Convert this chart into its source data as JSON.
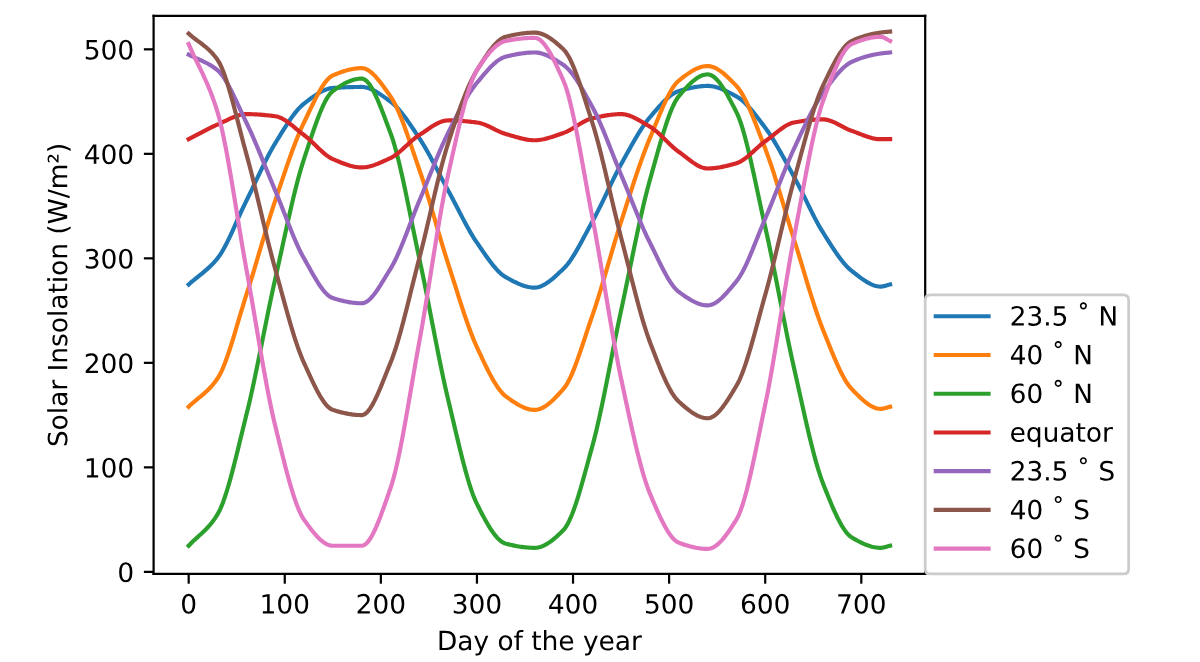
{
  "chart_data": {
    "type": "line",
    "xlabel": "Day of the year",
    "ylabel": "Solar Insolation (W/m²)",
    "x": [
      0,
      30,
      60,
      90,
      120,
      150,
      180,
      210,
      240,
      270,
      300,
      330,
      360,
      390,
      420,
      450,
      480,
      510,
      540,
      570,
      600,
      630,
      660,
      690,
      720,
      730
    ],
    "series": [
      {
        "name": "23.5 ˚ N",
        "color": "#1f77b4",
        "values": [
          275,
          300,
          355,
          410,
          448,
          463,
          464,
          450,
          415,
          365,
          315,
          282,
          272,
          290,
          335,
          390,
          435,
          460,
          465,
          455,
          425,
          378,
          325,
          288,
          273,
          275
        ]
      },
      {
        "name": "40 ˚ N",
        "color": "#ff7f0e",
        "values": [
          158,
          185,
          265,
          355,
          430,
          475,
          482,
          455,
          385,
          295,
          215,
          168,
          155,
          175,
          245,
          335,
          415,
          470,
          484,
          465,
          405,
          318,
          232,
          175,
          156,
          158
        ]
      },
      {
        "name": "60 ˚ N",
        "color": "#2ca02c",
        "values": [
          25,
          55,
          150,
          280,
          395,
          460,
          472,
          420,
          300,
          165,
          65,
          27,
          23,
          40,
          120,
          250,
          375,
          455,
          476,
          440,
          330,
          195,
          85,
          33,
          23,
          25
        ]
      },
      {
        "name": "equator",
        "color": "#d62728",
        "values": [
          414,
          428,
          438,
          436,
          418,
          395,
          387,
          396,
          418,
          432,
          430,
          419,
          413,
          420,
          434,
          438,
          426,
          402,
          386,
          391,
          412,
          430,
          433,
          422,
          414,
          414
        ]
      },
      {
        "name": "23.5 ˚ S",
        "color": "#9467bd",
        "values": [
          495,
          480,
          430,
          365,
          300,
          262,
          257,
          290,
          355,
          420,
          468,
          493,
          497,
          485,
          445,
          380,
          315,
          268,
          255,
          278,
          338,
          405,
          458,
          488,
          496,
          497
        ]
      },
      {
        "name": "40 ˚ S",
        "color": "#8c564b",
        "values": [
          515,
          490,
          400,
          290,
          200,
          155,
          150,
          200,
          300,
          410,
          480,
          512,
          516,
          500,
          430,
          320,
          220,
          163,
          147,
          178,
          265,
          375,
          465,
          508,
          516,
          517
        ]
      },
      {
        "name": "60 ˚ S",
        "color": "#e377c2",
        "values": [
          505,
          440,
          290,
          140,
          50,
          25,
          25,
          80,
          220,
          380,
          480,
          508,
          511,
          470,
          340,
          185,
          75,
          28,
          22,
          50,
          160,
          320,
          450,
          505,
          512,
          508
        ]
      }
    ],
    "xlim": [
      -36.5,
      766.5
    ],
    "ylim": [
      -2,
      532
    ],
    "xticks": [
      0,
      100,
      200,
      300,
      400,
      500,
      600,
      700
    ],
    "yticks": [
      0,
      100,
      200,
      300,
      400,
      500
    ],
    "legend": "right",
    "grid": false,
    "line_style": "solid"
  }
}
